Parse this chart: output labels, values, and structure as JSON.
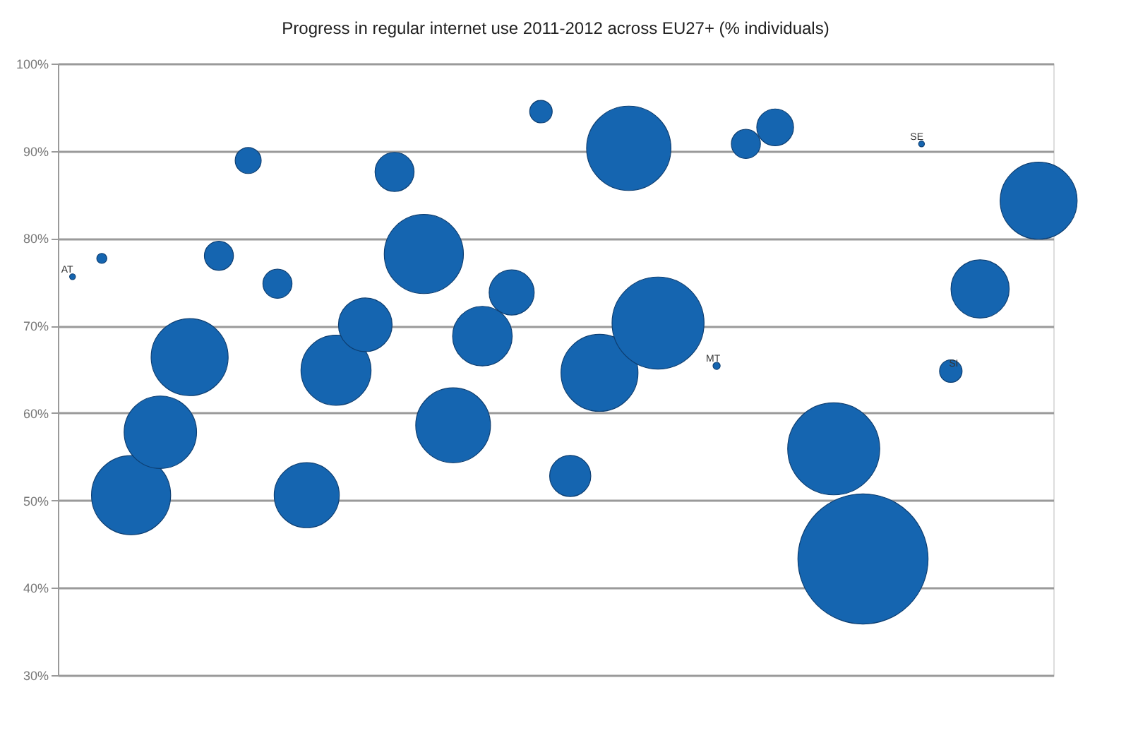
{
  "chart_data": {
    "type": "bubble",
    "title": "Progress in regular internet use 2011-2012 across EU27+ (% individuals)",
    "categories": [
      null,
      null,
      null,
      null,
      null,
      null,
      null,
      null,
      null,
      null,
      null,
      null,
      null,
      null,
      null,
      null,
      null,
      null,
      null,
      null,
      null,
      null,
      null,
      null,
      null,
      null,
      null,
      null,
      null,
      null,
      null,
      null,
      null,
      null
    ],
    "series": [
      {
        "color": "#1565b0",
        "values": [
          null,
          77.7,
          50.6,
          57.8,
          66.4,
          78.0,
          88.9,
          74.8,
          50.6,
          64.9,
          70.1,
          87.6,
          78.2,
          58.6,
          68.8,
          73.8,
          94.5,
          52.8,
          64.6,
          90.3,
          70.3,
          null,
          null,
          90.8,
          92.7,
          null,
          55.9,
          43.3,
          null,
          null,
          null,
          74.2,
          null,
          84.3
        ],
        "sizes": [
          null,
          0.006,
          0.37,
          0.31,
          0.35,
          0.05,
          0.04,
          0.05,
          0.25,
          0.29,
          0.17,
          0.09,
          0.37,
          0.33,
          0.21,
          0.12,
          0.03,
          0.1,
          0.35,
          0.42,
          0.5,
          null,
          null,
          0.05,
          0.08,
          null,
          0.5,
          1,
          null,
          null,
          null,
          0.2,
          null,
          0.35
        ]
      },
      {
        "name": "AT",
        "color": "#1565b0",
        "values": [
          75.6,
          null,
          null,
          null,
          null,
          null,
          null,
          null,
          null,
          null,
          null,
          null,
          null,
          null,
          null,
          null,
          null,
          null,
          null,
          null,
          null,
          null,
          null,
          null,
          null,
          null,
          null,
          null,
          null,
          null,
          null,
          null,
          null,
          null
        ],
        "sizes": [
          0.002,
          null,
          null,
          null,
          null,
          null,
          null,
          null,
          null,
          null,
          null,
          null,
          null,
          null,
          null,
          null,
          null,
          null,
          null,
          null,
          null,
          null,
          null,
          null,
          null,
          null,
          null,
          null,
          null,
          null,
          null,
          null,
          null,
          null
        ]
      },
      {
        "name": "MT",
        "color": "#1565b0",
        "values": [
          null,
          null,
          null,
          null,
          null,
          null,
          null,
          null,
          null,
          null,
          null,
          null,
          null,
          null,
          null,
          null,
          null,
          null,
          null,
          null,
          null,
          null,
          65.4,
          null,
          null,
          null,
          null,
          null,
          null,
          null,
          null,
          null,
          null,
          null
        ],
        "sizes": [
          null,
          null,
          null,
          null,
          null,
          null,
          null,
          null,
          null,
          null,
          null,
          null,
          null,
          null,
          null,
          null,
          null,
          null,
          null,
          null,
          null,
          null,
          0.003,
          null,
          null,
          null,
          null,
          null,
          null,
          null,
          null,
          null,
          null,
          null
        ]
      },
      {
        "name": "SE",
        "color": "#1565b0",
        "values": [
          null,
          null,
          null,
          null,
          null,
          null,
          null,
          null,
          null,
          null,
          null,
          null,
          null,
          null,
          null,
          null,
          null,
          null,
          null,
          null,
          null,
          null,
          null,
          null,
          null,
          null,
          null,
          null,
          null,
          90.8,
          null,
          null,
          null,
          null
        ],
        "sizes": [
          null,
          null,
          null,
          null,
          null,
          null,
          null,
          null,
          null,
          null,
          null,
          null,
          null,
          null,
          null,
          null,
          null,
          null,
          null,
          null,
          null,
          null,
          null,
          null,
          null,
          null,
          null,
          null,
          null,
          0.002,
          null,
          null,
          null,
          null
        ]
      },
      {
        "name": "SI",
        "color": "#1565b0",
        "values": [
          null,
          null,
          null,
          null,
          null,
          null,
          null,
          null,
          null,
          null,
          null,
          null,
          null,
          null,
          null,
          null,
          null,
          null,
          null,
          null,
          null,
          null,
          null,
          null,
          null,
          null,
          null,
          null,
          null,
          null,
          64.8,
          null,
          null,
          null
        ],
        "sizes": [
          null,
          null,
          null,
          null,
          null,
          null,
          null,
          null,
          null,
          null,
          null,
          null,
          null,
          null,
          null,
          null,
          null,
          null,
          null,
          null,
          null,
          null,
          null,
          null,
          null,
          null,
          null,
          null,
          null,
          null,
          0.03,
          null,
          null,
          null
        ]
      }
    ],
    "ylim": [
      30,
      100
    ],
    "yticks": [
      {
        "value": 30,
        "label": "30%"
      },
      {
        "value": 40,
        "label": "40%"
      },
      {
        "value": 50,
        "label": "50%"
      },
      {
        "value": 60,
        "label": "60%"
      },
      {
        "value": 70,
        "label": "70%"
      },
      {
        "value": 80,
        "label": "80%"
      },
      {
        "value": 90,
        "label": "90%"
      },
      {
        "value": 100,
        "label": "100%"
      }
    ],
    "grid": "y",
    "tick_labels": "y"
  }
}
